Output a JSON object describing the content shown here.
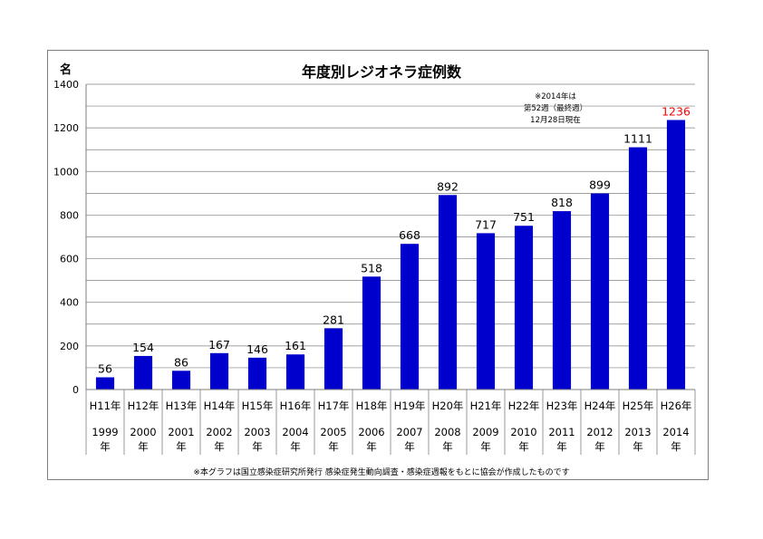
{
  "chart_data": {
    "type": "bar",
    "title": "年度別レジオネラ症例数",
    "ylabel": "名",
    "ylim": [
      0,
      1400
    ],
    "yticks": [
      0,
      200,
      400,
      600,
      800,
      1000,
      1200,
      1400
    ],
    "categories": [
      {
        "era": "H11年",
        "year": "1999",
        "suffix": "年"
      },
      {
        "era": "H12年",
        "year": "2000",
        "suffix": "年"
      },
      {
        "era": "H13年",
        "year": "2001",
        "suffix": "年"
      },
      {
        "era": "H14年",
        "year": "2002",
        "suffix": "年"
      },
      {
        "era": "H15年",
        "year": "2003",
        "suffix": "年"
      },
      {
        "era": "H16年",
        "year": "2004",
        "suffix": "年"
      },
      {
        "era": "H17年",
        "year": "2005",
        "suffix": "年"
      },
      {
        "era": "H18年",
        "year": "2006",
        "suffix": "年"
      },
      {
        "era": "H19年",
        "year": "2007",
        "suffix": "年"
      },
      {
        "era": "H20年",
        "year": "2008",
        "suffix": "年"
      },
      {
        "era": "H21年",
        "year": "2009",
        "suffix": "年"
      },
      {
        "era": "H22年",
        "year": "2010",
        "suffix": "年"
      },
      {
        "era": "H23年",
        "year": "2011",
        "suffix": "年"
      },
      {
        "era": "H24年",
        "year": "2012",
        "suffix": "年"
      },
      {
        "era": "H25年",
        "year": "2013",
        "suffix": "年"
      },
      {
        "era": "H26年",
        "year": "2014",
        "suffix": "年"
      }
    ],
    "values": [
      56,
      154,
      86,
      167,
      146,
      161,
      281,
      518,
      668,
      892,
      717,
      751,
      818,
      899,
      1111,
      1236
    ],
    "grid": true,
    "colors": {
      "bar": "#0000cc",
      "highlight_label": "#ff0000",
      "label": "#000000",
      "grid": "#808080"
    },
    "highlight_index": 15,
    "annotation_lines": [
      "※2014年は",
      "第52週（最終週）",
      "12月28日現在"
    ],
    "footnote": "※本グラフは国立感染症研究所発行 感染症発生動向調査・感染症週報をもとに協会が作成したものです"
  }
}
